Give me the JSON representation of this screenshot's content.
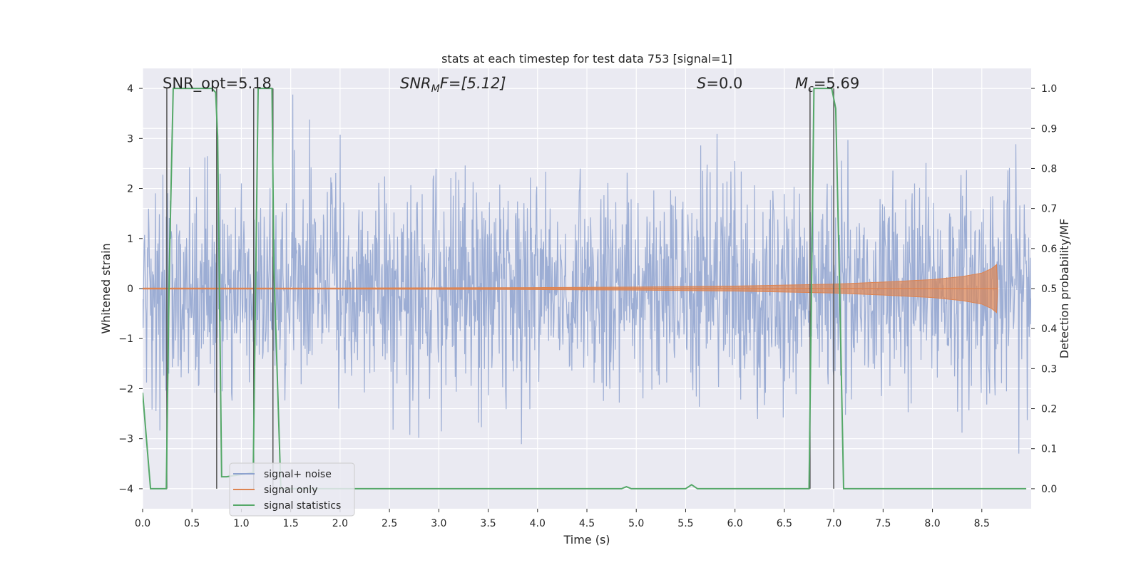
{
  "chart_data": {
    "type": "line",
    "title": "stats at each timestep for test data 753 [signal=1]",
    "xlabel": "Time (s)",
    "ylabel": "Whitened strain",
    "y2label": "Detection probability/MF",
    "xlim": [
      0.0,
      9.0
    ],
    "ylim": [
      -4.4,
      4.4
    ],
    "y2lim": [
      -0.05,
      1.05
    ],
    "x_ticks": [
      "0.0",
      "0.5",
      "1.0",
      "1.5",
      "2.0",
      "2.5",
      "3.0",
      "3.5",
      "4.0",
      "4.5",
      "5.0",
      "5.5",
      "6.0",
      "6.5",
      "7.0",
      "7.5",
      "8.0",
      "8.5"
    ],
    "y_ticks": [
      "4",
      "3",
      "2",
      "1",
      "0",
      "−1",
      "−2",
      "−3",
      "−4"
    ],
    "y2_ticks": [
      "1.0",
      "0.9",
      "0.8",
      "0.7",
      "0.6",
      "0.5",
      "0.4",
      "0.3",
      "0.2",
      "0.1",
      "0.0"
    ],
    "annotations": {
      "snr_opt": "SNR_opt=5.18",
      "snr_mf_main": "SNR",
      "snr_mf_sub": "M",
      "snr_mf_rest": "F=[5.12]",
      "s_main": "S",
      "s_rest": "=0.0",
      "mc_main": "M",
      "mc_sub": "c",
      "mc_rest": "=5.69"
    },
    "series": [
      {
        "name": "signal+ noise",
        "color": "#8ea2cf",
        "description": "whitened strain, noise-dominated, amplitude roughly between -4 and 4"
      },
      {
        "name": "signal only",
        "color": "#dd8452",
        "envelope_x": [
          0.0,
          2.0,
          4.0,
          5.0,
          6.0,
          7.0,
          7.5,
          8.0,
          8.3,
          8.5,
          8.6,
          8.65,
          8.66
        ],
        "envelope_y": [
          0.01,
          0.012,
          0.02,
          0.03,
          0.05,
          0.09,
          0.13,
          0.18,
          0.24,
          0.31,
          0.4,
          0.48,
          0.05
        ]
      },
      {
        "name": "signal statistics",
        "color": "#55a868",
        "axis": "right",
        "x": [
          0.0,
          0.08,
          0.24,
          0.27,
          0.31,
          0.7,
          0.74,
          0.76,
          0.8,
          0.85,
          1.12,
          1.17,
          1.31,
          1.33,
          1.4,
          4.85,
          4.9,
          4.95,
          5.5,
          5.56,
          5.62,
          6.5,
          6.75,
          6.8,
          6.98,
          7.02,
          7.06,
          7.1,
          8.95
        ],
        "y": [
          0.24,
          0.0,
          0.0,
          0.55,
          1.0,
          1.0,
          0.99,
          0.88,
          0.03,
          0.03,
          0.04,
          1.0,
          1.0,
          0.55,
          0.0,
          0.0,
          0.005,
          0.0,
          0.0,
          0.01,
          0.0,
          0.0,
          0.0,
          1.0,
          1.0,
          0.95,
          0.5,
          0.0,
          0.0
        ]
      }
    ],
    "vertical_markers": [
      0.245,
      0.75,
      1.125,
      1.32,
      6.76,
      7.0
    ],
    "legend": [
      "signal+ noise",
      "signal only",
      "signal statistics"
    ],
    "legend_placement": "lower-left"
  },
  "colors": {
    "plot_bg": "#eaeaf2",
    "grid": "#ffffff",
    "noise": "#8ea2cf",
    "signal": "#dd8452",
    "stats": "#55a868",
    "marker": "#555555"
  }
}
